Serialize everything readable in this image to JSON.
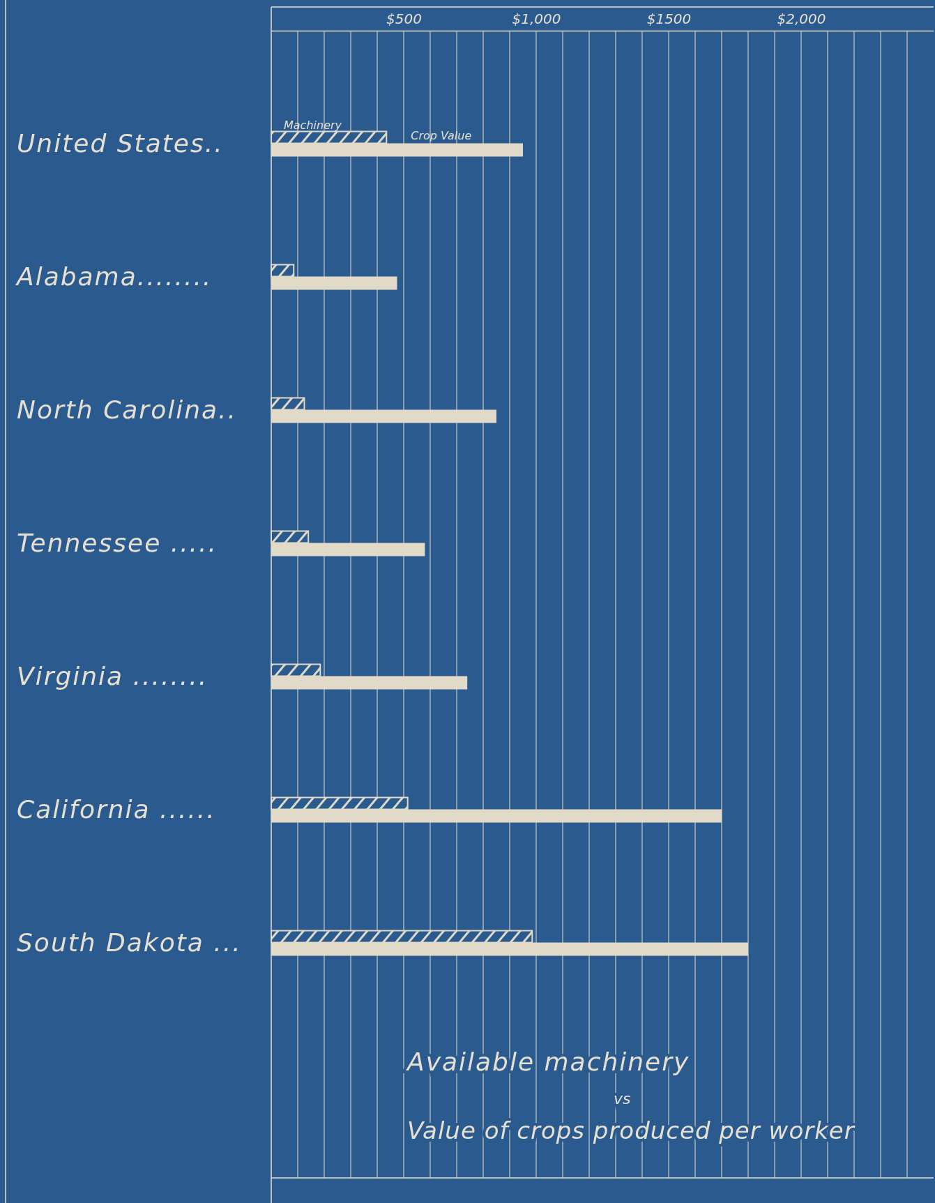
{
  "chart_data": {
    "type": "bar",
    "orientation": "horizontal",
    "title": "Available machinery",
    "subtitle": "Value of crops produced per worker",
    "annotations": [
      "vs"
    ],
    "categories": [
      "United States..",
      "Alabama........",
      "North Carolina..",
      "Tennessee .....",
      "Virginia ........",
      "California ......",
      "South Dakota ..."
    ],
    "series": [
      {
        "name": "Machinery",
        "color": "#e2dac8",
        "values": [
          435,
          85,
          125,
          140,
          185,
          515,
          985
        ]
      },
      {
        "name": "Crop Value",
        "color": "#e2dac8",
        "values": [
          950,
          475,
          850,
          580,
          740,
          1700,
          1800
        ]
      }
    ],
    "xlim": [
      0,
      2500
    ],
    "xticks": [
      {
        "value": 100,
        "label": null
      },
      {
        "value": 200,
        "label": null
      },
      {
        "value": 300,
        "label": null
      },
      {
        "value": 400,
        "label": null
      },
      {
        "value": 500,
        "label": "$500"
      },
      {
        "value": 600,
        "label": null
      },
      {
        "value": 700,
        "label": null
      },
      {
        "value": 800,
        "label": null
      },
      {
        "value": 900,
        "label": null
      },
      {
        "value": 1000,
        "label": "$1,000"
      },
      {
        "value": 1100,
        "label": null
      },
      {
        "value": 1200,
        "label": null
      },
      {
        "value": 1300,
        "label": null
      },
      {
        "value": 1400,
        "label": null
      },
      {
        "value": 1500,
        "label": "$1500"
      },
      {
        "value": 1600,
        "label": null
      },
      {
        "value": 1700,
        "label": null
      },
      {
        "value": 1800,
        "label": null
      },
      {
        "value": 1900,
        "label": null
      },
      {
        "value": 2000,
        "label": "$2,000"
      },
      {
        "value": 2100,
        "label": null
      },
      {
        "value": 2200,
        "label": null
      },
      {
        "value": 2300,
        "label": null
      },
      {
        "value": 2400,
        "label": null
      }
    ],
    "grid": "x"
  }
}
